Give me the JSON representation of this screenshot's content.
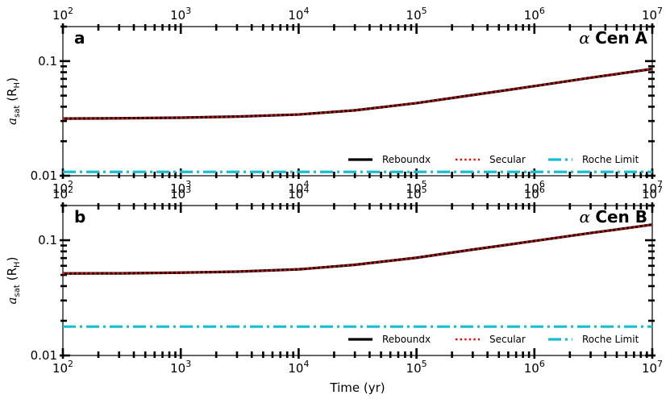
{
  "chart_data": [
    {
      "type": "line",
      "panel_label": "a",
      "title_prefix": "α",
      "title": "Cen A",
      "xlabel": "",
      "ylabel_symbol": "a",
      "ylabel_subscript": "sat",
      "ylabel_unit": "(R",
      "ylabel_unit_subscript": "H",
      "ylabel_unit_close": ")",
      "x_scale": "log",
      "y_scale": "log",
      "xlim": [
        100,
        10000000
      ],
      "ylim": [
        0.01,
        0.2
      ],
      "x_ticks": [
        {
          "base": "10",
          "exp": "2"
        },
        {
          "base": "10",
          "exp": "3"
        },
        {
          "base": "10",
          "exp": "4"
        },
        {
          "base": "10",
          "exp": "5"
        },
        {
          "base": "10",
          "exp": "6"
        },
        {
          "base": "10",
          "exp": "7"
        }
      ],
      "y_tick_labels": [
        "0.01",
        "0.1"
      ],
      "legend_position": "lower-right",
      "series": [
        {
          "name": "Reboundx",
          "color": "#000000",
          "style": "solid",
          "x": [
            100,
            300,
            1000,
            3000,
            10000,
            30000,
            100000,
            300000,
            1000000,
            3000000,
            10000000
          ],
          "y": [
            0.0315,
            0.0317,
            0.0321,
            0.0328,
            0.0342,
            0.0372,
            0.043,
            0.0506,
            0.0605,
            0.0716,
            0.0855
          ]
        },
        {
          "name": "Secular",
          "color": "#ff0000",
          "style": "dotted",
          "x": [
            100,
            300,
            1000,
            3000,
            10000,
            30000,
            100000,
            300000,
            1000000,
            3000000,
            10000000
          ],
          "y": [
            0.0315,
            0.0317,
            0.0321,
            0.0328,
            0.0342,
            0.0372,
            0.043,
            0.0506,
            0.0605,
            0.0716,
            0.0855
          ]
        },
        {
          "name": "Roche Limit",
          "color": "#17becf",
          "style": "dashdot",
          "x": [
            100,
            10000000
          ],
          "y": [
            0.0108,
            0.0108
          ]
        }
      ]
    },
    {
      "type": "line",
      "panel_label": "b",
      "title_prefix": "α",
      "title": "Cen B",
      "xlabel": "Time (yr)",
      "ylabel_symbol": "a",
      "ylabel_subscript": "sat",
      "ylabel_unit": "(R",
      "ylabel_unit_subscript": "H",
      "ylabel_unit_close": ")",
      "x_scale": "log",
      "y_scale": "log",
      "xlim": [
        100,
        10000000
      ],
      "ylim": [
        0.01,
        0.2
      ],
      "x_ticks": [
        {
          "base": "10",
          "exp": "2"
        },
        {
          "base": "10",
          "exp": "3"
        },
        {
          "base": "10",
          "exp": "4"
        },
        {
          "base": "10",
          "exp": "5"
        },
        {
          "base": "10",
          "exp": "6"
        },
        {
          "base": "10",
          "exp": "7"
        }
      ],
      "y_tick_labels": [
        "0.01",
        "0.1"
      ],
      "legend_position": "lower-right",
      "series": [
        {
          "name": "Reboundx",
          "color": "#000000",
          "style": "solid",
          "x": [
            100,
            300,
            1000,
            3000,
            10000,
            30000,
            100000,
            300000,
            1000000,
            3000000,
            10000000
          ],
          "y": [
            0.0515,
            0.0516,
            0.0523,
            0.0534,
            0.0559,
            0.0612,
            0.0705,
            0.083,
            0.0985,
            0.1155,
            0.1365
          ]
        },
        {
          "name": "Secular",
          "color": "#ff0000",
          "style": "dotted",
          "x": [
            100,
            300,
            1000,
            3000,
            10000,
            30000,
            100000,
            300000,
            1000000,
            3000000,
            10000000
          ],
          "y": [
            0.0515,
            0.0516,
            0.0523,
            0.0534,
            0.0559,
            0.0612,
            0.0705,
            0.083,
            0.0985,
            0.1155,
            0.1365
          ]
        },
        {
          "name": "Roche Limit",
          "color": "#17becf",
          "style": "dashdot",
          "x": [
            100,
            10000000
          ],
          "y": [
            0.0178,
            0.0178
          ]
        }
      ]
    }
  ]
}
